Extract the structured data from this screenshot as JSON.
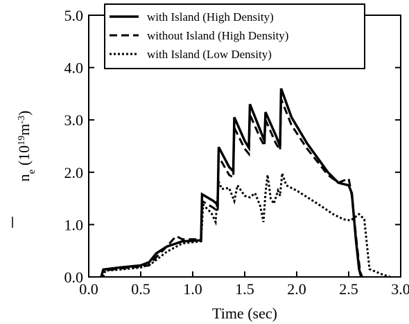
{
  "chart_data": {
    "type": "line",
    "xlabel": "Time (sec)",
    "ylabel": {
      "symbol": "n",
      "subscript": "e",
      "unit_open": " (10",
      "unit_exp1": "19",
      "unit_mid": "m",
      "unit_exp2": "-3",
      "unit_close": ")"
    },
    "xlim": [
      0.0,
      3.0
    ],
    "ylim": [
      0.0,
      5.0
    ],
    "xticks": [
      "0.0",
      "0.5",
      "1.0",
      "1.5",
      "2.0",
      "2.5",
      "3.0"
    ],
    "yticks": [
      "0.0",
      "1.0",
      "2.0",
      "3.0",
      "4.0",
      "5.0"
    ],
    "grid": false,
    "legend_position": "top-right",
    "series": [
      {
        "name": "with Island (High Density)",
        "style": "solid",
        "color": "#000000",
        "x": [
          0.12,
          0.14,
          0.3,
          0.5,
          0.58,
          0.65,
          0.75,
          0.9,
          1.08,
          1.09,
          1.2,
          1.24,
          1.25,
          1.35,
          1.39,
          1.4,
          1.5,
          1.54,
          1.55,
          1.65,
          1.69,
          1.7,
          1.8,
          1.84,
          1.85,
          1.95,
          2.1,
          2.3,
          2.4,
          2.5,
          2.53,
          2.57,
          2.6,
          2.62
        ],
        "y": [
          0.0,
          0.14,
          0.18,
          0.22,
          0.28,
          0.45,
          0.58,
          0.68,
          0.7,
          1.58,
          1.45,
          1.38,
          2.48,
          2.1,
          2.02,
          3.05,
          2.6,
          2.47,
          3.3,
          2.8,
          2.6,
          3.15,
          2.7,
          2.5,
          3.6,
          3.05,
          2.55,
          2.0,
          1.8,
          1.75,
          1.6,
          0.7,
          0.15,
          0.0
        ]
      },
      {
        "name": "without Island (High Density)",
        "style": "dashed",
        "color": "#000000",
        "x": [
          0.12,
          0.14,
          0.3,
          0.5,
          0.58,
          0.65,
          0.75,
          0.84,
          0.9,
          1.08,
          1.09,
          1.2,
          1.24,
          1.25,
          1.35,
          1.39,
          1.4,
          1.5,
          1.54,
          1.55,
          1.65,
          1.69,
          1.7,
          1.8,
          1.84,
          1.85,
          1.95,
          2.1,
          2.3,
          2.4,
          2.5,
          2.53,
          2.58,
          2.61,
          2.63
        ],
        "y": [
          0.0,
          0.12,
          0.16,
          0.2,
          0.22,
          0.38,
          0.58,
          0.78,
          0.72,
          0.72,
          1.45,
          1.32,
          1.25,
          2.3,
          1.95,
          1.9,
          2.85,
          2.45,
          2.35,
          3.1,
          2.65,
          2.5,
          3.0,
          2.55,
          2.42,
          3.4,
          2.9,
          2.45,
          1.95,
          1.8,
          1.88,
          1.55,
          0.6,
          0.1,
          0.0
        ]
      },
      {
        "name": "with Island (Low Density)",
        "style": "dotted",
        "color": "#000000",
        "x": [
          0.14,
          0.16,
          0.3,
          0.5,
          0.6,
          0.75,
          0.9,
          1.08,
          1.1,
          1.18,
          1.22,
          1.25,
          1.28,
          1.35,
          1.4,
          1.43,
          1.5,
          1.55,
          1.6,
          1.65,
          1.68,
          1.7,
          1.72,
          1.75,
          1.78,
          1.82,
          1.84,
          1.86,
          1.9,
          2.0,
          2.2,
          2.35,
          2.45,
          2.52,
          2.6,
          2.65,
          2.7,
          2.82,
          2.9
        ],
        "y": [
          0.0,
          0.12,
          0.14,
          0.18,
          0.25,
          0.48,
          0.64,
          0.68,
          1.38,
          1.22,
          1.05,
          1.82,
          1.68,
          1.7,
          1.45,
          1.75,
          1.55,
          1.52,
          1.6,
          1.35,
          1.05,
          1.6,
          1.95,
          1.5,
          1.4,
          1.65,
          1.55,
          1.98,
          1.75,
          1.65,
          1.4,
          1.2,
          1.1,
          1.08,
          1.2,
          1.1,
          0.15,
          0.05,
          0.0
        ]
      }
    ]
  }
}
